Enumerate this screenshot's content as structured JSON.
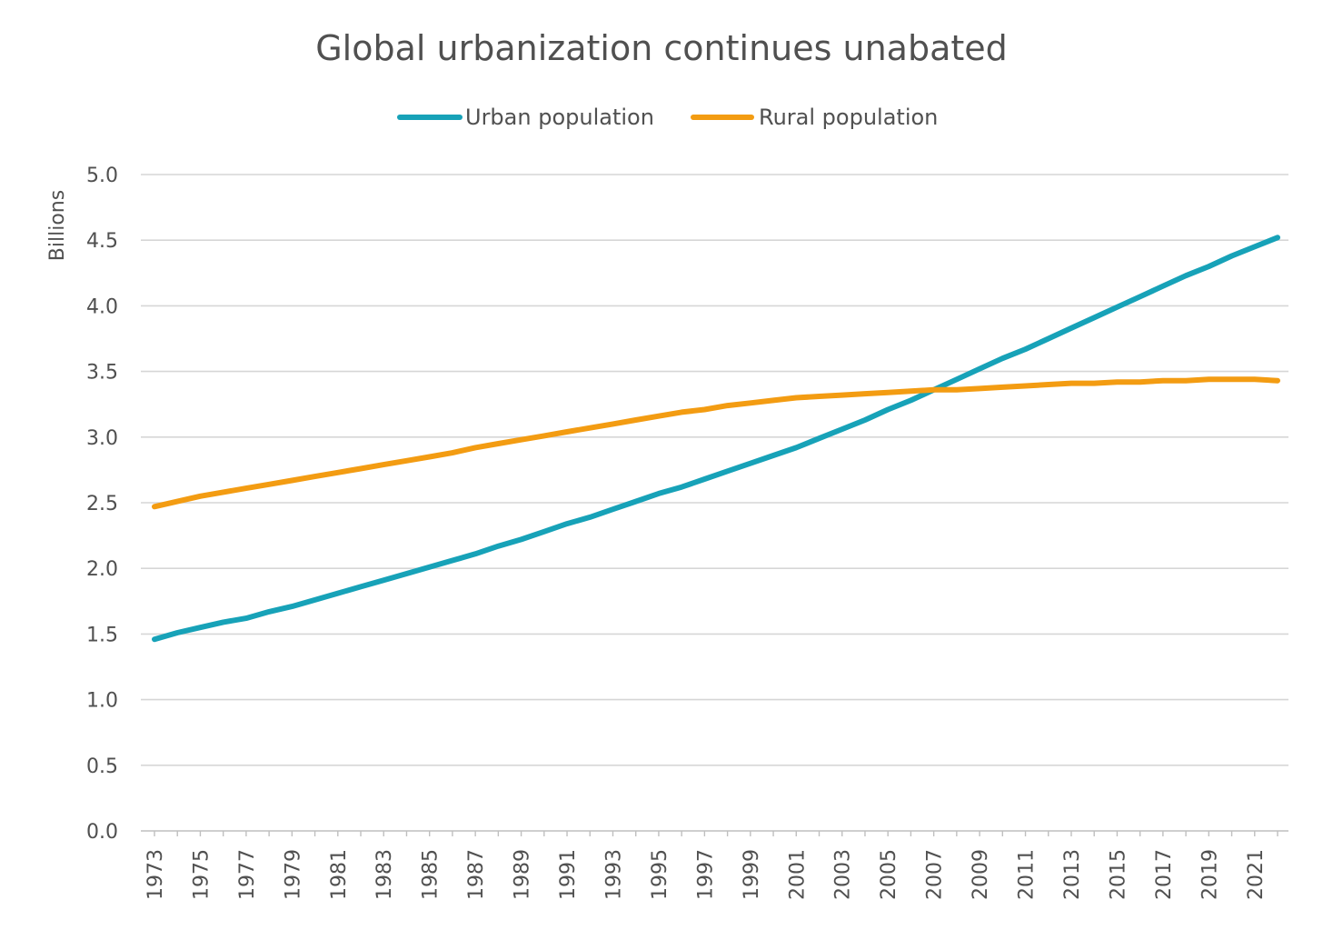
{
  "chart_data": {
    "type": "line",
    "title": "Global urbanization continues unabated",
    "xlabel": "",
    "ylabel": "Billions",
    "ylim": [
      0,
      5
    ],
    "yticks": [
      "0.0",
      "0.5",
      "1.0",
      "1.5",
      "2.0",
      "2.5",
      "3.0",
      "3.5",
      "4.0",
      "4.5",
      "5.0"
    ],
    "x": [
      1973,
      1974,
      1975,
      1976,
      1977,
      1978,
      1979,
      1980,
      1981,
      1982,
      1983,
      1984,
      1985,
      1986,
      1987,
      1988,
      1989,
      1990,
      1991,
      1992,
      1993,
      1994,
      1995,
      1996,
      1997,
      1998,
      1999,
      2000,
      2001,
      2002,
      2003,
      2004,
      2005,
      2006,
      2007,
      2008,
      2009,
      2010,
      2011,
      2012,
      2013,
      2014,
      2015,
      2016,
      2017,
      2018,
      2019,
      2020,
      2021,
      2022
    ],
    "xticks": [
      "1973",
      "1975",
      "1977",
      "1979",
      "1981",
      "1983",
      "1985",
      "1987",
      "1989",
      "1991",
      "1993",
      "1995",
      "1997",
      "1999",
      "2001",
      "2003",
      "2005",
      "2007",
      "2009",
      "2011",
      "2013",
      "2015",
      "2017",
      "2019",
      "2021"
    ],
    "grid": true,
    "legend_position": "top",
    "series": [
      {
        "name": "Urban population",
        "color": "#17a2b8",
        "values": [
          1.46,
          1.51,
          1.55,
          1.59,
          1.62,
          1.67,
          1.71,
          1.76,
          1.81,
          1.86,
          1.91,
          1.96,
          2.01,
          2.06,
          2.11,
          2.17,
          2.22,
          2.28,
          2.34,
          2.39,
          2.45,
          2.51,
          2.57,
          2.62,
          2.68,
          2.74,
          2.8,
          2.86,
          2.92,
          2.99,
          3.06,
          3.13,
          3.21,
          3.28,
          3.36,
          3.44,
          3.52,
          3.6,
          3.67,
          3.75,
          3.83,
          3.91,
          3.99,
          4.07,
          4.15,
          4.23,
          4.3,
          4.38,
          4.45,
          4.52
        ]
      },
      {
        "name": "Rural population",
        "color": "#f39c12",
        "values": [
          2.47,
          2.51,
          2.55,
          2.58,
          2.61,
          2.64,
          2.67,
          2.7,
          2.73,
          2.76,
          2.79,
          2.82,
          2.85,
          2.88,
          2.92,
          2.95,
          2.98,
          3.01,
          3.04,
          3.07,
          3.1,
          3.13,
          3.16,
          3.19,
          3.21,
          3.24,
          3.26,
          3.28,
          3.3,
          3.31,
          3.32,
          3.33,
          3.34,
          3.35,
          3.36,
          3.36,
          3.37,
          3.38,
          3.39,
          3.4,
          3.41,
          3.41,
          3.42,
          3.42,
          3.43,
          3.43,
          3.44,
          3.44,
          3.44,
          3.43
        ]
      }
    ]
  }
}
